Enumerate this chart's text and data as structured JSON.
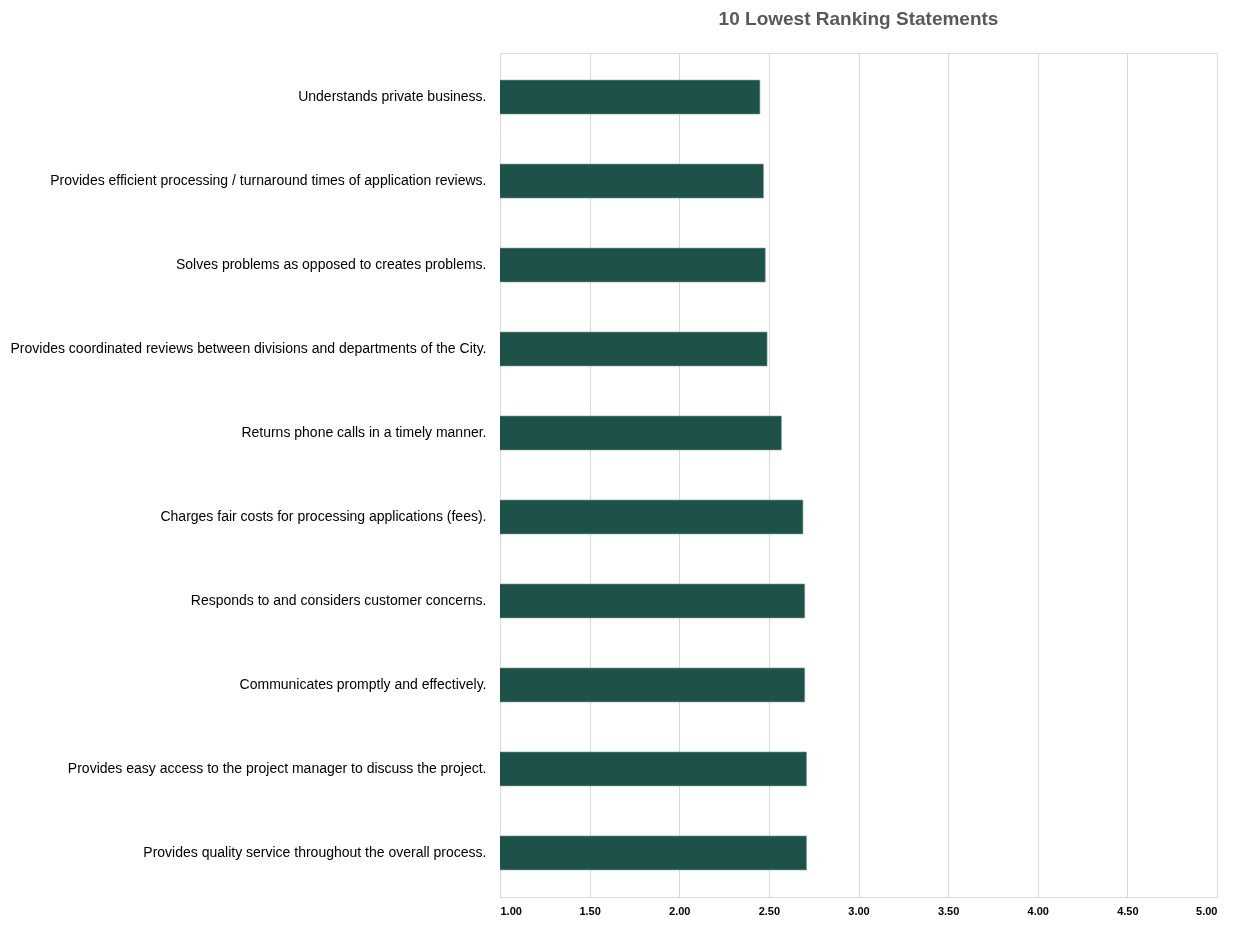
{
  "chart_data": {
    "type": "bar",
    "orientation": "horizontal",
    "title": "10 Lowest Ranking Statements",
    "categories": [
      "Understands private business.",
      "Provides efficient processing / turnaround times of application reviews.",
      "Solves problems as opposed to creates problems.",
      "Provides coordinated reviews between divisions and departments of the City.",
      "Returns phone calls in a timely manner.",
      "Charges fair costs for processing applications (fees).",
      "Responds to and considers customer concerns.",
      "Communicates promptly and effectively.",
      "Provides easy access to the project manager to discuss the project.",
      "Provides quality service throughout the overall process."
    ],
    "values": [
      2.45,
      2.47,
      2.48,
      2.49,
      2.57,
      2.69,
      2.7,
      2.7,
      2.71,
      2.71
    ],
    "color": "#1e5248",
    "xlim": [
      1,
      5
    ],
    "xticks": [
      {
        "value": 1,
        "label": "1.00"
      },
      {
        "value": 1.5,
        "label": "1.50"
      },
      {
        "value": 2,
        "label": "2.00"
      },
      {
        "value": 2.5,
        "label": "2.50"
      },
      {
        "value": 3,
        "label": "3.00"
      },
      {
        "value": 3.5,
        "label": "3.50"
      },
      {
        "value": 4,
        "label": "4.00"
      },
      {
        "value": 4.5,
        "label": "4.50"
      },
      {
        "value": 5,
        "label": "5.00"
      }
    ],
    "grid": "x"
  }
}
